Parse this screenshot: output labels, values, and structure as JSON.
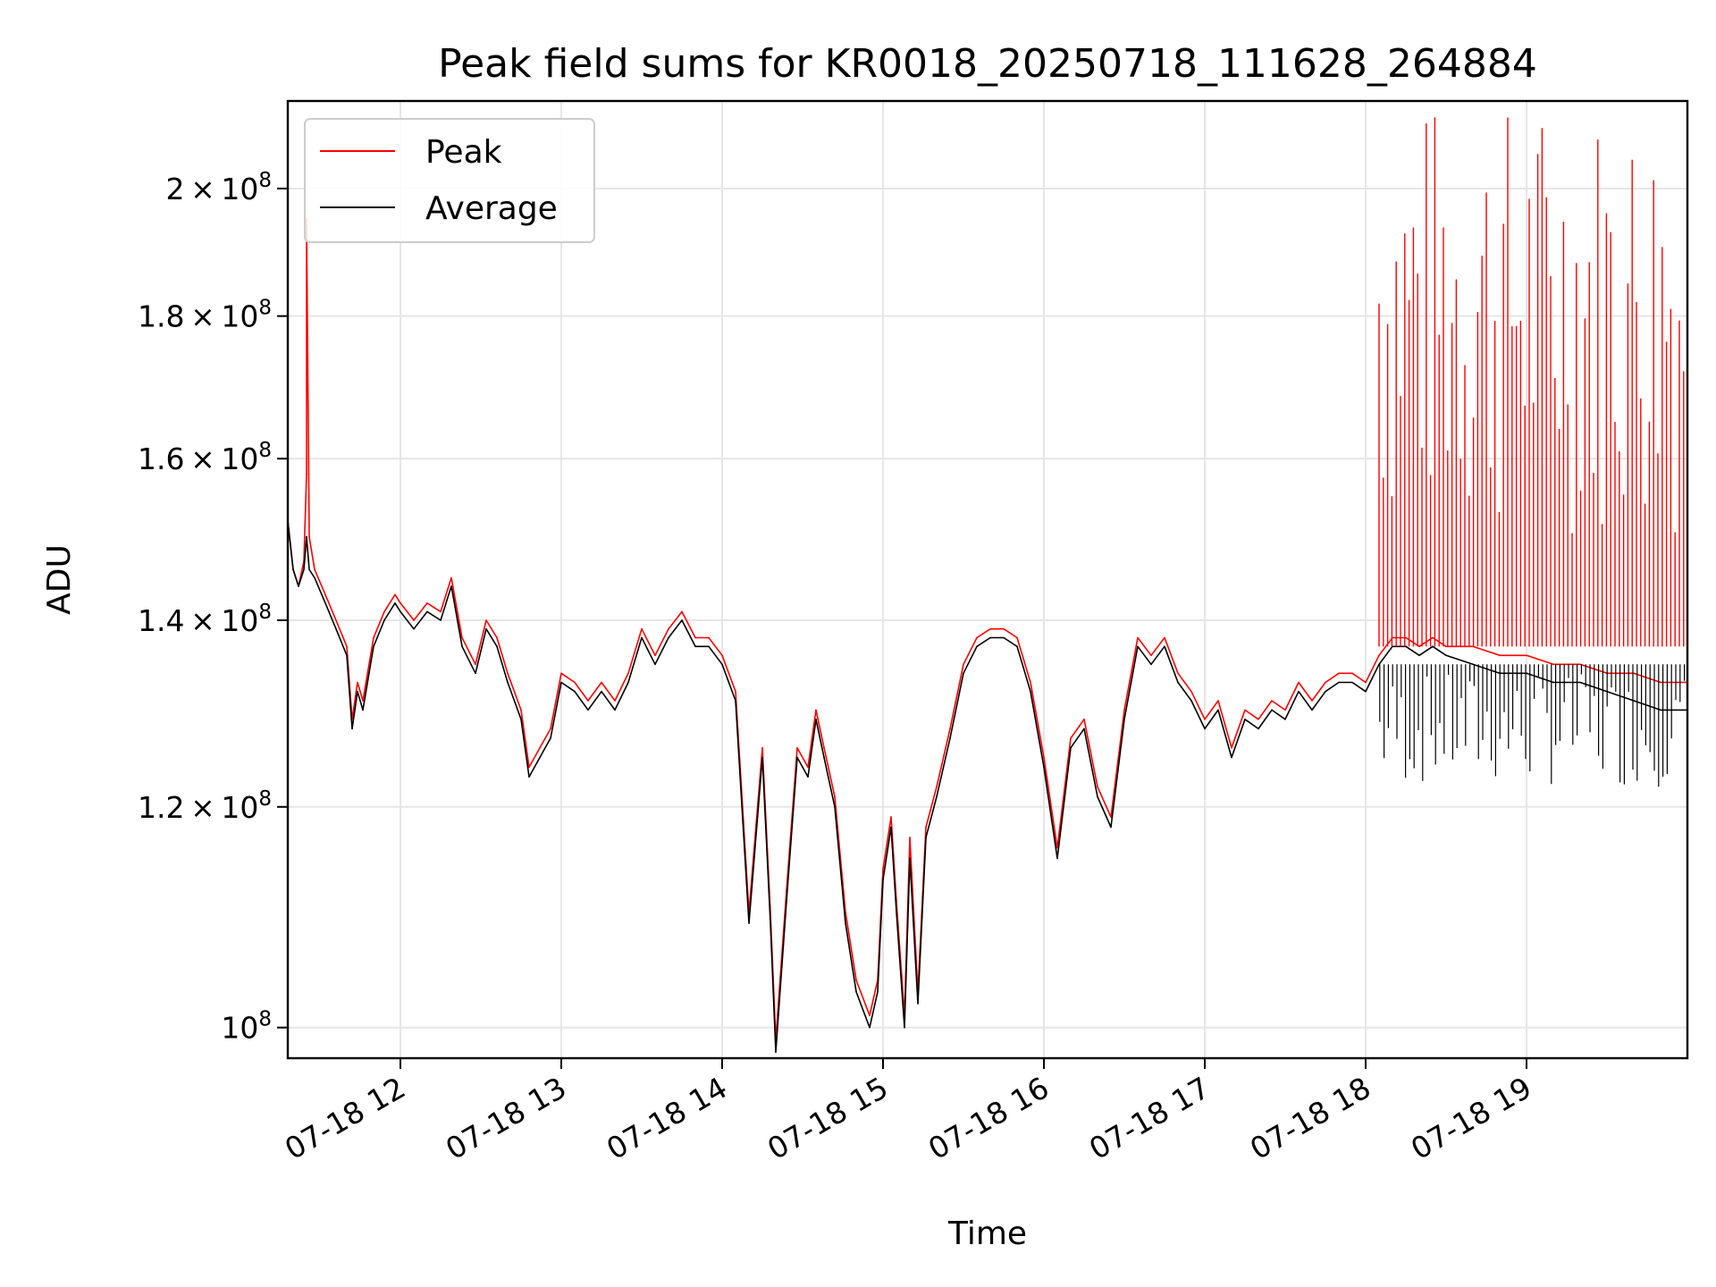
{
  "chart_data": {
    "type": "line",
    "title": "Peak field sums for KR0018_20250718_111628_264884",
    "xlabel": "Time",
    "ylabel": "ADU",
    "y_scale": "log",
    "ylim": [
      97500000,
      215000000
    ],
    "xlim": [
      "07-18 11:18",
      "07-18 20:00"
    ],
    "x_ticks": [
      "07-18 12",
      "07-18 13",
      "07-18 14",
      "07-18 15",
      "07-18 16",
      "07-18 17",
      "07-18 18",
      "07-18 19"
    ],
    "x_tick_times": [
      "07-18 12:00",
      "07-18 13:00",
      "07-18 14:00",
      "07-18 15:00",
      "07-18 16:00",
      "07-18 17:00",
      "07-18 18:00",
      "07-18 19:00"
    ],
    "y_ticks": [
      {
        "value": 100000000,
        "mantissa": "",
        "exp": "8",
        "base": "10"
      },
      {
        "value": 120000000,
        "mantissa": "1.2",
        "exp": "8",
        "base": "10"
      },
      {
        "value": 140000000,
        "mantissa": "1.4",
        "exp": "8",
        "base": "10"
      },
      {
        "value": 160000000,
        "mantissa": "1.6",
        "exp": "8",
        "base": "10"
      },
      {
        "value": 180000000,
        "mantissa": "1.8",
        "exp": "8",
        "base": "10"
      },
      {
        "value": 200000000,
        "mantissa": "2",
        "exp": "8",
        "base": "10"
      }
    ],
    "grid": true,
    "legend_position": "top-left",
    "series": [
      {
        "name": "Peak",
        "color": "#ff0000",
        "note_style": "follows Average closely until ~18:00, then frequent spikes up to ~2.1e8",
        "points": [
          [
            "07-18 11:18",
            152
          ],
          [
            "07-18 11:20",
            146
          ],
          [
            "07-18 11:22",
            144
          ],
          [
            "07-18 11:24",
            147
          ],
          [
            "07-18 11:25",
            158
          ],
          [
            "07-18 11:25",
            195
          ],
          [
            "07-18 11:26",
            150
          ],
          [
            "07-18 11:28",
            146
          ],
          [
            "07-18 11:32",
            143
          ],
          [
            "07-18 11:36",
            140
          ],
          [
            "07-18 11:40",
            137
          ],
          [
            "07-18 11:42",
            129
          ],
          [
            "07-18 11:44",
            133
          ],
          [
            "07-18 11:46",
            131
          ],
          [
            "07-18 11:50",
            138
          ],
          [
            "07-18 11:54",
            141
          ],
          [
            "07-18 11:58",
            143
          ],
          [
            "07-18 12:00",
            142
          ],
          [
            "07-18 12:05",
            140
          ],
          [
            "07-18 12:10",
            142
          ],
          [
            "07-18 12:15",
            141
          ],
          [
            "07-18 12:19",
            145
          ],
          [
            "07-18 12:23",
            138
          ],
          [
            "07-18 12:28",
            135
          ],
          [
            "07-18 12:32",
            140
          ],
          [
            "07-18 12:36",
            138
          ],
          [
            "07-18 12:40",
            134
          ],
          [
            "07-18 12:45",
            130
          ],
          [
            "07-18 12:48",
            124
          ],
          [
            "07-18 12:52",
            126
          ],
          [
            "07-18 12:56",
            128
          ],
          [
            "07-18 13:00",
            134
          ],
          [
            "07-18 13:05",
            133
          ],
          [
            "07-18 13:10",
            131
          ],
          [
            "07-18 13:15",
            133
          ],
          [
            "07-18 13:20",
            131
          ],
          [
            "07-18 13:25",
            134
          ],
          [
            "07-18 13:30",
            139
          ],
          [
            "07-18 13:35",
            136
          ],
          [
            "07-18 13:40",
            139
          ],
          [
            "07-18 13:45",
            141
          ],
          [
            "07-18 13:50",
            138
          ],
          [
            "07-18 13:55",
            138
          ],
          [
            "07-18 14:00",
            136
          ],
          [
            "07-18 14:05",
            132
          ],
          [
            "07-18 14:10",
            110
          ],
          [
            "07-18 14:15",
            126
          ],
          [
            "07-18 14:18",
            110
          ],
          [
            "07-18 14:20",
            99
          ],
          [
            "07-18 14:24",
            112
          ],
          [
            "07-18 14:28",
            126
          ],
          [
            "07-18 14:32",
            124
          ],
          [
            "07-18 14:35",
            130
          ],
          [
            "07-18 14:38",
            126
          ],
          [
            "07-18 14:42",
            121
          ],
          [
            "07-18 14:46",
            110
          ],
          [
            "07-18 14:50",
            104
          ],
          [
            "07-18 14:55",
            101
          ],
          [
            "07-18 14:58",
            104
          ],
          [
            "07-18 15:00",
            114
          ],
          [
            "07-18 15:03",
            119
          ],
          [
            "07-18 15:05",
            111
          ],
          [
            "07-18 15:08",
            101
          ],
          [
            "07-18 15:10",
            117
          ],
          [
            "07-18 15:13",
            103
          ],
          [
            "07-18 15:16",
            118
          ],
          [
            "07-18 15:20",
            122
          ],
          [
            "07-18 15:25",
            128
          ],
          [
            "07-18 15:30",
            135
          ],
          [
            "07-18 15:35",
            138
          ],
          [
            "07-18 15:40",
            139
          ],
          [
            "07-18 15:45",
            139
          ],
          [
            "07-18 15:50",
            138
          ],
          [
            "07-18 15:55",
            133
          ],
          [
            "07-18 16:00",
            125
          ],
          [
            "07-18 16:05",
            116
          ],
          [
            "07-18 16:10",
            127
          ],
          [
            "07-18 16:15",
            129
          ],
          [
            "07-18 16:20",
            122
          ],
          [
            "07-18 16:25",
            119
          ],
          [
            "07-18 16:30",
            130
          ],
          [
            "07-18 16:35",
            138
          ],
          [
            "07-18 16:40",
            136
          ],
          [
            "07-18 16:45",
            138
          ],
          [
            "07-18 16:50",
            134
          ],
          [
            "07-18 16:55",
            132
          ],
          [
            "07-18 17:00",
            129
          ],
          [
            "07-18 17:05",
            131
          ],
          [
            "07-18 17:10",
            126
          ],
          [
            "07-18 17:15",
            130
          ],
          [
            "07-18 17:20",
            129
          ],
          [
            "07-18 17:25",
            131
          ],
          [
            "07-18 17:30",
            130
          ],
          [
            "07-18 17:35",
            133
          ],
          [
            "07-18 17:40",
            131
          ],
          [
            "07-18 17:45",
            133
          ],
          [
            "07-18 17:50",
            134
          ],
          [
            "07-18 17:55",
            134
          ],
          [
            "07-18 18:00",
            133
          ],
          [
            "07-18 18:05",
            136
          ],
          [
            "07-18 18:10",
            138
          ],
          [
            "07-18 18:15",
            138
          ],
          [
            "07-18 18:20",
            137
          ],
          [
            "07-18 18:25",
            138
          ],
          [
            "07-18 18:30",
            137
          ],
          [
            "07-18 18:40",
            137
          ],
          [
            "07-18 18:50",
            136
          ],
          [
            "07-18 19:00",
            136
          ],
          [
            "07-18 19:10",
            135
          ],
          [
            "07-18 19:20",
            135
          ],
          [
            "07-18 19:30",
            134
          ],
          [
            "07-18 19:40",
            134
          ],
          [
            "07-18 19:50",
            133
          ],
          [
            "07-18 20:00",
            133
          ]
        ]
      },
      {
        "name": "Average",
        "color": "#000000",
        "note_style": "baseline trace; after ~18:00 noisy dips down to ~1.2e8",
        "points": [
          [
            "07-18 11:18",
            152
          ],
          [
            "07-18 11:20",
            146
          ],
          [
            "07-18 11:22",
            144
          ],
          [
            "07-18 11:24",
            146
          ],
          [
            "07-18 11:25",
            150
          ],
          [
            "07-18 11:26",
            146
          ],
          [
            "07-18 11:28",
            145
          ],
          [
            "07-18 11:32",
            142
          ],
          [
            "07-18 11:36",
            139
          ],
          [
            "07-18 11:40",
            136
          ],
          [
            "07-18 11:42",
            128
          ],
          [
            "07-18 11:44",
            132
          ],
          [
            "07-18 11:46",
            130
          ],
          [
            "07-18 11:50",
            137
          ],
          [
            "07-18 11:54",
            140
          ],
          [
            "07-18 11:58",
            142
          ],
          [
            "07-18 12:00",
            141
          ],
          [
            "07-18 12:05",
            139
          ],
          [
            "07-18 12:10",
            141
          ],
          [
            "07-18 12:15",
            140
          ],
          [
            "07-18 12:19",
            144
          ],
          [
            "07-18 12:23",
            137
          ],
          [
            "07-18 12:28",
            134
          ],
          [
            "07-18 12:32",
            139
          ],
          [
            "07-18 12:36",
            137
          ],
          [
            "07-18 12:40",
            133
          ],
          [
            "07-18 12:45",
            129
          ],
          [
            "07-18 12:48",
            123
          ],
          [
            "07-18 12:52",
            125
          ],
          [
            "07-18 12:56",
            127
          ],
          [
            "07-18 13:00",
            133
          ],
          [
            "07-18 13:05",
            132
          ],
          [
            "07-18 13:10",
            130
          ],
          [
            "07-18 13:15",
            132
          ],
          [
            "07-18 13:20",
            130
          ],
          [
            "07-18 13:25",
            133
          ],
          [
            "07-18 13:30",
            138
          ],
          [
            "07-18 13:35",
            135
          ],
          [
            "07-18 13:40",
            138
          ],
          [
            "07-18 13:45",
            140
          ],
          [
            "07-18 13:50",
            137
          ],
          [
            "07-18 13:55",
            137
          ],
          [
            "07-18 14:00",
            135
          ],
          [
            "07-18 14:05",
            131
          ],
          [
            "07-18 14:10",
            109
          ],
          [
            "07-18 14:15",
            125
          ],
          [
            "07-18 14:18",
            109
          ],
          [
            "07-18 14:20",
            98
          ],
          [
            "07-18 14:24",
            111
          ],
          [
            "07-18 14:28",
            125
          ],
          [
            "07-18 14:32",
            123
          ],
          [
            "07-18 14:35",
            129
          ],
          [
            "07-18 14:38",
            125
          ],
          [
            "07-18 14:42",
            120
          ],
          [
            "07-18 14:46",
            109
          ],
          [
            "07-18 14:50",
            103
          ],
          [
            "07-18 14:55",
            100
          ],
          [
            "07-18 14:58",
            103
          ],
          [
            "07-18 15:00",
            113
          ],
          [
            "07-18 15:03",
            118
          ],
          [
            "07-18 15:05",
            110
          ],
          [
            "07-18 15:08",
            100
          ],
          [
            "07-18 15:10",
            115
          ],
          [
            "07-18 15:13",
            102
          ],
          [
            "07-18 15:16",
            117
          ],
          [
            "07-18 15:20",
            121
          ],
          [
            "07-18 15:25",
            127
          ],
          [
            "07-18 15:30",
            134
          ],
          [
            "07-18 15:35",
            137
          ],
          [
            "07-18 15:40",
            138
          ],
          [
            "07-18 15:45",
            138
          ],
          [
            "07-18 15:50",
            137
          ],
          [
            "07-18 15:55",
            132
          ],
          [
            "07-18 16:00",
            124
          ],
          [
            "07-18 16:05",
            115
          ],
          [
            "07-18 16:10",
            126
          ],
          [
            "07-18 16:15",
            128
          ],
          [
            "07-18 16:20",
            121
          ],
          [
            "07-18 16:25",
            118
          ],
          [
            "07-18 16:30",
            129
          ],
          [
            "07-18 16:35",
            137
          ],
          [
            "07-18 16:40",
            135
          ],
          [
            "07-18 16:45",
            137
          ],
          [
            "07-18 16:50",
            133
          ],
          [
            "07-18 16:55",
            131
          ],
          [
            "07-18 17:00",
            128
          ],
          [
            "07-18 17:05",
            130
          ],
          [
            "07-18 17:10",
            125
          ],
          [
            "07-18 17:15",
            129
          ],
          [
            "07-18 17:20",
            128
          ],
          [
            "07-18 17:25",
            130
          ],
          [
            "07-18 17:30",
            129
          ],
          [
            "07-18 17:35",
            132
          ],
          [
            "07-18 17:40",
            130
          ],
          [
            "07-18 17:45",
            132
          ],
          [
            "07-18 17:50",
            133
          ],
          [
            "07-18 17:55",
            133
          ],
          [
            "07-18 18:00",
            132
          ],
          [
            "07-18 18:05",
            135
          ],
          [
            "07-18 18:10",
            137
          ],
          [
            "07-18 18:15",
            137
          ],
          [
            "07-18 18:20",
            136
          ],
          [
            "07-18 18:25",
            137
          ],
          [
            "07-18 18:30",
            136
          ],
          [
            "07-18 18:40",
            135
          ],
          [
            "07-18 18:50",
            134
          ],
          [
            "07-18 19:00",
            134
          ],
          [
            "07-18 19:10",
            133
          ],
          [
            "07-18 19:20",
            133
          ],
          [
            "07-18 19:30",
            132
          ],
          [
            "07-18 19:40",
            131
          ],
          [
            "07-18 19:50",
            130
          ],
          [
            "07-18 20:00",
            130
          ]
        ]
      }
    ],
    "units_note": "series point y values in units of 1e6 ADU"
  }
}
